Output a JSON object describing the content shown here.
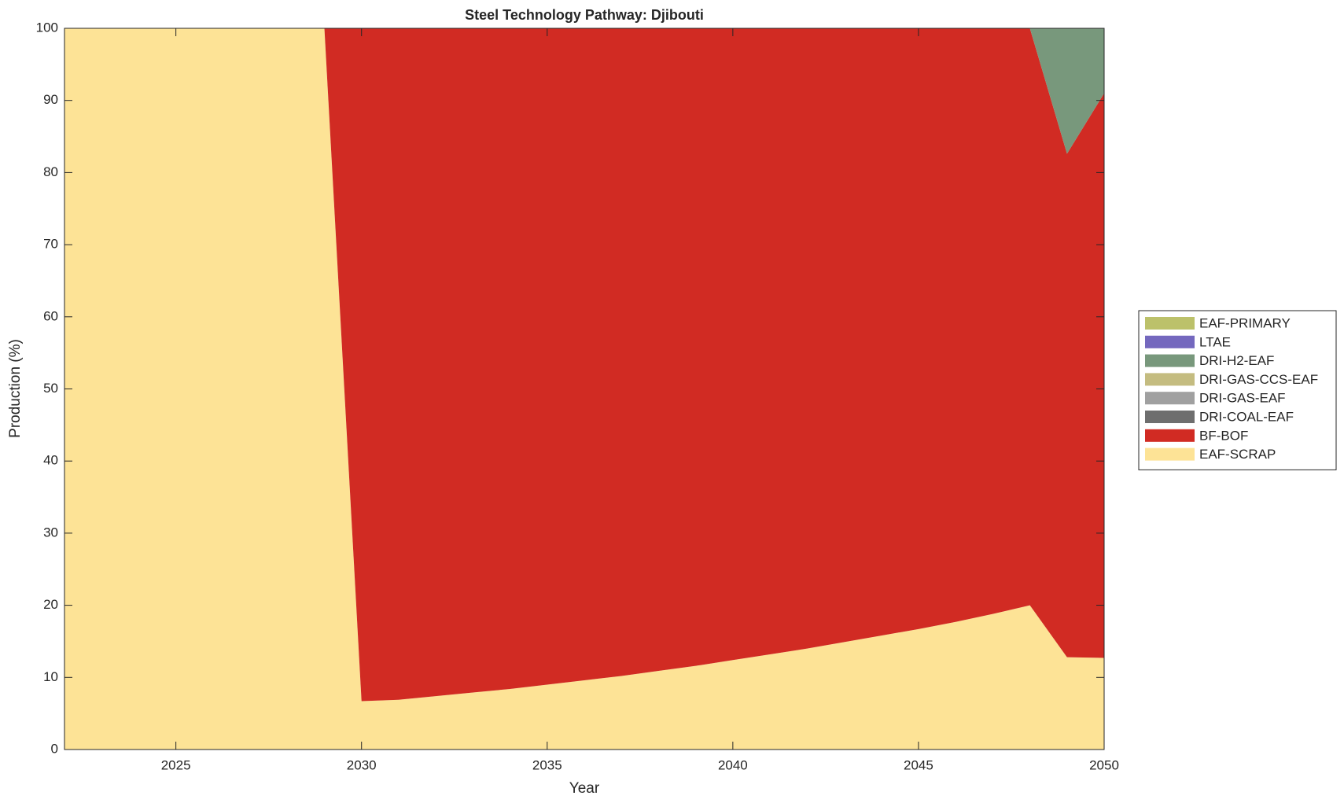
{
  "chart_data": {
    "type": "stacked_area",
    "title": "Steel Technology Pathway: Djibouti",
    "xlabel": "Year",
    "ylabel": "Production (%)",
    "x": [
      2022,
      2023,
      2024,
      2025,
      2026,
      2027,
      2028,
      2029,
      2030,
      2031,
      2032,
      2033,
      2034,
      2035,
      2036,
      2037,
      2038,
      2039,
      2040,
      2041,
      2042,
      2043,
      2044,
      2045,
      2046,
      2047,
      2048,
      2049,
      2050
    ],
    "series": [
      {
        "name": "EAF-SCRAP",
        "color": "#fde396",
        "values": [
          100,
          100,
          100,
          100,
          100,
          100,
          100,
          100,
          6.7,
          6.9,
          7.4,
          7.9,
          8.4,
          9.0,
          9.6,
          10.2,
          10.9,
          11.6,
          12.4,
          13.2,
          14.0,
          14.9,
          15.8,
          16.7,
          17.7,
          18.8,
          20.0,
          12.8,
          12.7
        ]
      },
      {
        "name": "BF-BOF",
        "color": "#d12b23",
        "values": [
          0,
          0,
          0,
          0,
          0,
          0,
          0,
          0,
          93.3,
          93.1,
          92.6,
          92.1,
          91.6,
          91.0,
          90.4,
          89.8,
          89.1,
          88.4,
          87.6,
          86.8,
          86.0,
          85.1,
          84.2,
          83.3,
          82.3,
          81.2,
          80.0,
          69.8,
          78.3
        ]
      },
      {
        "name": "DRI-COAL-EAF",
        "color": "#6e6e6e",
        "values": [
          0,
          0,
          0,
          0,
          0,
          0,
          0,
          0,
          0,
          0,
          0,
          0,
          0,
          0,
          0,
          0,
          0,
          0,
          0,
          0,
          0,
          0,
          0,
          0,
          0,
          0,
          0,
          0,
          0
        ]
      },
      {
        "name": "DRI-GAS-EAF",
        "color": "#a0a0a0",
        "values": [
          0,
          0,
          0,
          0,
          0,
          0,
          0,
          0,
          0,
          0,
          0,
          0,
          0,
          0,
          0,
          0,
          0,
          0,
          0,
          0,
          0,
          0,
          0,
          0,
          0,
          0,
          0,
          0,
          0
        ]
      },
      {
        "name": "DRI-GAS-CCS-EAF",
        "color": "#c4bc80",
        "values": [
          0,
          0,
          0,
          0,
          0,
          0,
          0,
          0,
          0,
          0,
          0,
          0,
          0,
          0,
          0,
          0,
          0,
          0,
          0,
          0,
          0,
          0,
          0,
          0,
          0,
          0,
          0,
          0,
          0
        ]
      },
      {
        "name": "DRI-H2-EAF",
        "color": "#78987c",
        "values": [
          0,
          0,
          0,
          0,
          0,
          0,
          0,
          0,
          0,
          0,
          0,
          0,
          0,
          0,
          0,
          0,
          0,
          0,
          0,
          0,
          0,
          0,
          0,
          0,
          0,
          0,
          0,
          17.4,
          9.0
        ]
      },
      {
        "name": "LTAE",
        "color": "#7468be",
        "values": [
          0,
          0,
          0,
          0,
          0,
          0,
          0,
          0,
          0,
          0,
          0,
          0,
          0,
          0,
          0,
          0,
          0,
          0,
          0,
          0,
          0,
          0,
          0,
          0,
          0,
          0,
          0,
          0,
          0
        ]
      },
      {
        "name": "EAF-PRIMARY",
        "color": "#bcc16a",
        "values": [
          0,
          0,
          0,
          0,
          0,
          0,
          0,
          0,
          0,
          0,
          0,
          0,
          0,
          0,
          0,
          0,
          0,
          0,
          0,
          0,
          0,
          0,
          0,
          0,
          0,
          0,
          0,
          0,
          0
        ]
      }
    ],
    "xlim": [
      2022,
      2050
    ],
    "xticks": [
      2025,
      2030,
      2035,
      2040,
      2045,
      2050
    ],
    "ylim": [
      0,
      100
    ],
    "yticks": [
      0,
      10,
      20,
      30,
      40,
      50,
      60,
      70,
      80,
      90,
      100
    ],
    "grid": false,
    "legend": "right"
  }
}
